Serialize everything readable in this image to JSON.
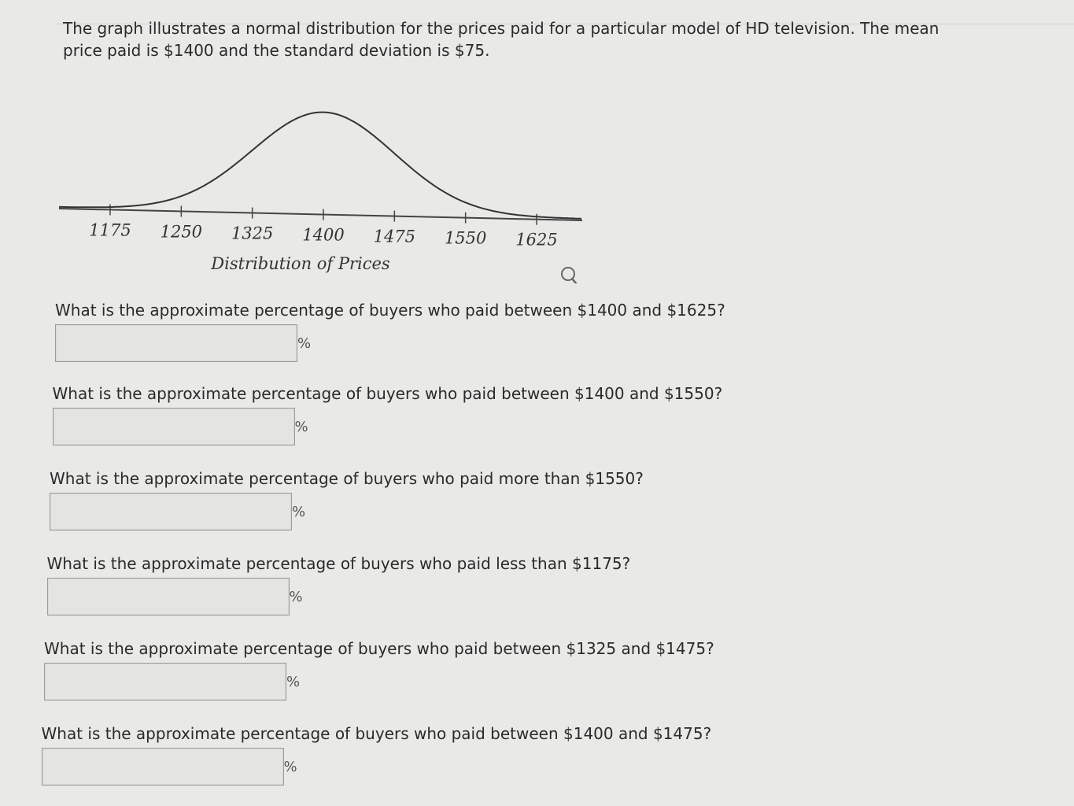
{
  "intro": "The graph illustrates a normal distribution for the prices paid for a particular model of HD television. The mean price paid is $1400 and the standard deviation is $75.",
  "graph": {
    "xticks": [
      1175,
      1250,
      1325,
      1400,
      1475,
      1550,
      1625
    ],
    "xlabel": "Distribution of Prices"
  },
  "questions": [
    {
      "text": "What is the approximate percentage of buyers who paid between $1400 and $1625?",
      "unit": "%"
    },
    {
      "text": "What is the approximate percentage of buyers who paid between $1400 and $1550?",
      "unit": "%"
    },
    {
      "text": "What is the approximate percentage of buyers who paid more than $1550?",
      "unit": "%"
    },
    {
      "text": "What is the approximate percentage of buyers who paid less than $1175?",
      "unit": "%"
    },
    {
      "text": "What is the approximate percentage of buyers who paid between $1325 and $1475?",
      "unit": "%"
    },
    {
      "text": "What is the approximate percentage of buyers who paid between $1400 and $1475?",
      "unit": "%"
    }
  ]
}
